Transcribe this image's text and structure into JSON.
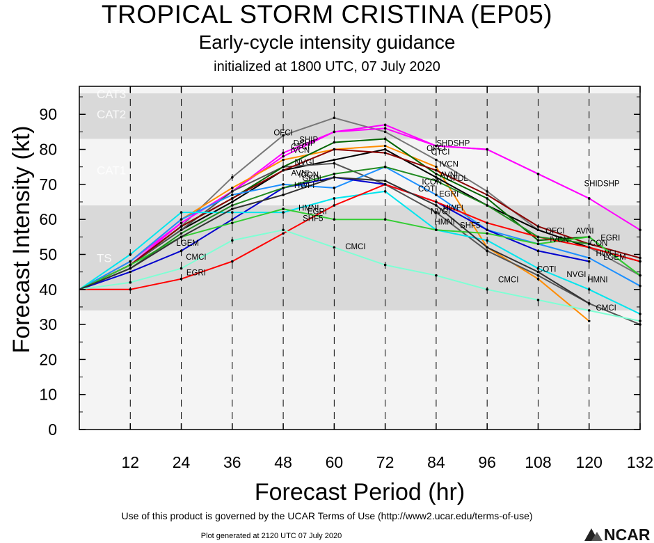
{
  "header": {
    "title": "TROPICAL STORM CRISTINA (EP05)",
    "subtitle": "Early-cycle intensity guidance",
    "initialized": "initialized at 1800 UTC, 07 July 2020"
  },
  "footer": {
    "terms": "Use of this product is governed by the UCAR Terms of Use (http://www2.ucar.edu/terms-of-use)",
    "generated": "Plot generated at 2120 UTC   07 July 2020",
    "logo_text": "NCAR"
  },
  "chart_data": {
    "type": "line",
    "title": "TROPICAL STORM CRISTINA (EP05)",
    "subtitle": "Early-cycle intensity guidance",
    "xlabel": "Forecast Period (hr)",
    "ylabel": "Forecast Intensity (kt)",
    "xlim": [
      0,
      132
    ],
    "ylim": [
      0,
      98
    ],
    "xticks": [
      12,
      24,
      36,
      48,
      60,
      72,
      84,
      96,
      108,
      120,
      132
    ],
    "yticks": [
      0,
      10,
      20,
      30,
      40,
      50,
      60,
      70,
      80,
      90
    ],
    "grid": "vertical dashed",
    "bands": [
      {
        "label": "TS",
        "from": 34,
        "to": 64,
        "color": "#d9d9d9"
      },
      {
        "label": "CAT1",
        "from": 64,
        "to": 83,
        "color": "#f4f4f4"
      },
      {
        "label": "CAT2",
        "from": 83,
        "to": 96,
        "color": "#d9d9d9"
      },
      {
        "label": "CAT3",
        "from": 96,
        "to": 113,
        "color": "#f4f4f4"
      }
    ],
    "series": [
      {
        "name": "OFCI",
        "color": "#777777",
        "x": [
          0,
          12,
          24,
          36,
          48,
          60,
          72,
          84,
          96,
          108,
          120,
          132
        ],
        "y": [
          40,
          47,
          58,
          72,
          84,
          89,
          85,
          77,
          68,
          57,
          52,
          44
        ]
      },
      {
        "name": "DSHP",
        "color": "#ff00ff",
        "x": [
          0,
          12,
          24,
          36,
          48,
          60,
          72,
          84,
          96,
          108,
          120,
          132
        ],
        "y": [
          40,
          47,
          59,
          68,
          78,
          85,
          87,
          81,
          80,
          73,
          66,
          57
        ]
      },
      {
        "name": "SHIP",
        "color": "#ff00ff",
        "x": [
          0,
          12,
          24,
          36,
          48,
          60,
          72,
          84,
          96,
          108,
          120
        ],
        "y": [
          40,
          48,
          59,
          68,
          79,
          85,
          86,
          81,
          80,
          73,
          66
        ]
      },
      {
        "name": "CTCI",
        "color": "#ff8c00",
        "x": [
          0,
          12,
          24,
          36,
          48,
          60,
          72,
          84,
          96,
          108,
          120
        ],
        "y": [
          40,
          48,
          60,
          69,
          77,
          80,
          81,
          75,
          52,
          43,
          31
        ]
      },
      {
        "name": "IVCN",
        "color": "#000000",
        "x": [
          0,
          12,
          24,
          36,
          48,
          60,
          72,
          84,
          96,
          108,
          120,
          132
        ],
        "y": [
          40,
          47,
          57,
          65,
          74,
          77,
          80,
          72,
          64,
          57,
          52,
          48
        ]
      },
      {
        "name": "NVGI",
        "color": "#555555",
        "x": [
          0,
          12,
          24,
          36,
          48,
          60,
          72,
          84,
          96,
          108,
          120,
          132
        ],
        "y": [
          40,
          47,
          57,
          68,
          75,
          76,
          70,
          62,
          51,
          44,
          36,
          30
        ]
      },
      {
        "name": "AVNI",
        "color": "#006400",
        "x": [
          0,
          12,
          24,
          36,
          48,
          60,
          72,
          84,
          96,
          108,
          120,
          132
        ],
        "y": [
          40,
          47,
          58,
          66,
          75,
          82,
          83,
          73,
          66,
          54,
          55,
          44
        ]
      },
      {
        "name": "ICON",
        "color": "#8b0000",
        "x": [
          0,
          12,
          24,
          36,
          48,
          60,
          72,
          84,
          96,
          108,
          120,
          132
        ],
        "y": [
          40,
          47,
          58,
          66,
          74,
          80,
          79,
          74,
          67,
          58,
          53,
          49
        ]
      },
      {
        "name": "HWFI",
        "color": "#1e90ff",
        "x": [
          0,
          12,
          24,
          36,
          48,
          60,
          72,
          84,
          96,
          108,
          120,
          132
        ],
        "y": [
          40,
          48,
          60,
          67,
          70,
          69,
          75,
          67,
          57,
          53,
          49,
          41
        ]
      },
      {
        "name": "LGEM",
        "color": "#0000cd",
        "x": [
          0,
          12,
          24,
          36,
          48,
          60,
          72,
          84,
          96,
          108,
          120
        ],
        "y": [
          40,
          45,
          51,
          60,
          69,
          72,
          70,
          65,
          57,
          51,
          48
        ]
      },
      {
        "name": "HMNI",
        "color": "#00e5ee",
        "x": [
          0,
          12,
          24,
          36,
          48,
          60,
          72,
          84,
          96,
          108,
          120,
          132
        ],
        "y": [
          40,
          50,
          62,
          62,
          62,
          66,
          68,
          57,
          54,
          46,
          40,
          33
        ]
      },
      {
        "name": "SHF5",
        "color": "#32cd32",
        "x": [
          0,
          12,
          24,
          36,
          48,
          60,
          72,
          84,
          96,
          108,
          120,
          132
        ],
        "y": [
          40,
          47,
          55,
          59,
          63,
          60,
          60,
          57,
          56,
          53,
          55,
          44
        ]
      },
      {
        "name": "EGRI",
        "color": "#ff0000",
        "x": [
          0,
          12,
          24,
          36,
          48,
          60,
          72,
          84,
          96,
          108,
          120,
          132
        ],
        "y": [
          40,
          40,
          43,
          48,
          56,
          64,
          70,
          65,
          59,
          55,
          52,
          48
        ]
      },
      {
        "name": "CMCI",
        "color": "#7fffd4",
        "x": [
          0,
          12,
          24,
          36,
          48,
          60,
          72,
          84,
          96,
          108,
          120,
          132
        ],
        "y": [
          40,
          42,
          46,
          54,
          57,
          52,
          47,
          44,
          40,
          37,
          34,
          31
        ]
      },
      {
        "name": "GFDL",
        "color": "#228b22",
        "x": [
          0,
          12,
          24,
          36,
          48,
          60,
          72,
          84,
          96,
          108,
          120
        ],
        "y": [
          40,
          46,
          56,
          64,
          69,
          73,
          75,
          71,
          64,
          55,
          53
        ]
      },
      {
        "name": "COTI",
        "color": "#333333",
        "x": [
          0,
          12,
          24,
          36,
          48,
          60,
          72,
          84,
          96,
          108,
          120
        ],
        "y": [
          40,
          46,
          55,
          63,
          67,
          72,
          71,
          64,
          52,
          45,
          36
        ]
      }
    ],
    "annotations": [
      {
        "text": "OFCI",
        "x": 48,
        "y": 84
      },
      {
        "text": "SHIP",
        "x": 54,
        "y": 82
      },
      {
        "text": "DSHP",
        "x": 53,
        "y": 81
      },
      {
        "text": "CTCI",
        "x": 52,
        "y": 80
      },
      {
        "text": "IVCN",
        "x": 52,
        "y": 79
      },
      {
        "text": "NVGI",
        "x": 53,
        "y": 75.5
      },
      {
        "text": "AVNI",
        "x": 52,
        "y": 72.5
      },
      {
        "text": "ICON",
        "x": 54,
        "y": 72
      },
      {
        "text": "GFDL",
        "x": 55,
        "y": 71
      },
      {
        "text": "HWFI",
        "x": 53,
        "y": 69
      },
      {
        "text": "HMNI",
        "x": 54,
        "y": 62.5
      },
      {
        "text": "EGRI",
        "x": 56,
        "y": 61.5
      },
      {
        "text": "SHF5",
        "x": 55,
        "y": 59.5
      },
      {
        "text": "LGEM",
        "x": 25.5,
        "y": 52.5
      },
      {
        "text": "CMCI",
        "x": 27.5,
        "y": 48.5
      },
      {
        "text": "EGRI",
        "x": 27.5,
        "y": 44
      },
      {
        "text": "CMCI",
        "x": 65,
        "y": 51.5
      },
      {
        "text": "SHDSHP",
        "x": 88,
        "y": 81
      },
      {
        "text": "OFCI",
        "x": 84,
        "y": 79.5
      },
      {
        "text": "CTCI",
        "x": 85,
        "y": 78.5
      },
      {
        "text": "IVCN",
        "x": 87,
        "y": 75
      },
      {
        "text": "AVNI",
        "x": 87,
        "y": 72
      },
      {
        "text": "ICON",
        "x": 83,
        "y": 70
      },
      {
        "text": "GFDL",
        "x": 89,
        "y": 71
      },
      {
        "text": "COTI",
        "x": 82,
        "y": 68
      },
      {
        "text": "EGRI",
        "x": 87,
        "y": 66.5
      },
      {
        "text": "HWFI",
        "x": 88,
        "y": 62.5
      },
      {
        "text": "NVGI",
        "x": 85,
        "y": 61.5
      },
      {
        "text": "HMNI",
        "x": 86,
        "y": 58.5
      },
      {
        "text": "SHF5",
        "x": 92,
        "y": 57.5
      },
      {
        "text": "CMCI",
        "x": 101,
        "y": 42
      },
      {
        "text": "COTI",
        "x": 110,
        "y": 45
      },
      {
        "text": "NVGI",
        "x": 117,
        "y": 43.5
      },
      {
        "text": "SHIDSHP",
        "x": 123,
        "y": 69.5
      },
      {
        "text": "OFCI",
        "x": 112,
        "y": 56
      },
      {
        "text": "AVNI",
        "x": 119,
        "y": 56
      },
      {
        "text": "IVCN",
        "x": 113,
        "y": 53.5
      },
      {
        "text": "EGRI",
        "x": 125,
        "y": 54
      },
      {
        "text": "ICON",
        "x": 122,
        "y": 52.5
      },
      {
        "text": "HWFI",
        "x": 124,
        "y": 49.5
      },
      {
        "text": "LGEM",
        "x": 126,
        "y": 48.5
      },
      {
        "text": "HMNI",
        "x": 122,
        "y": 42
      },
      {
        "text": "CMCI",
        "x": 124,
        "y": 34
      }
    ]
  }
}
